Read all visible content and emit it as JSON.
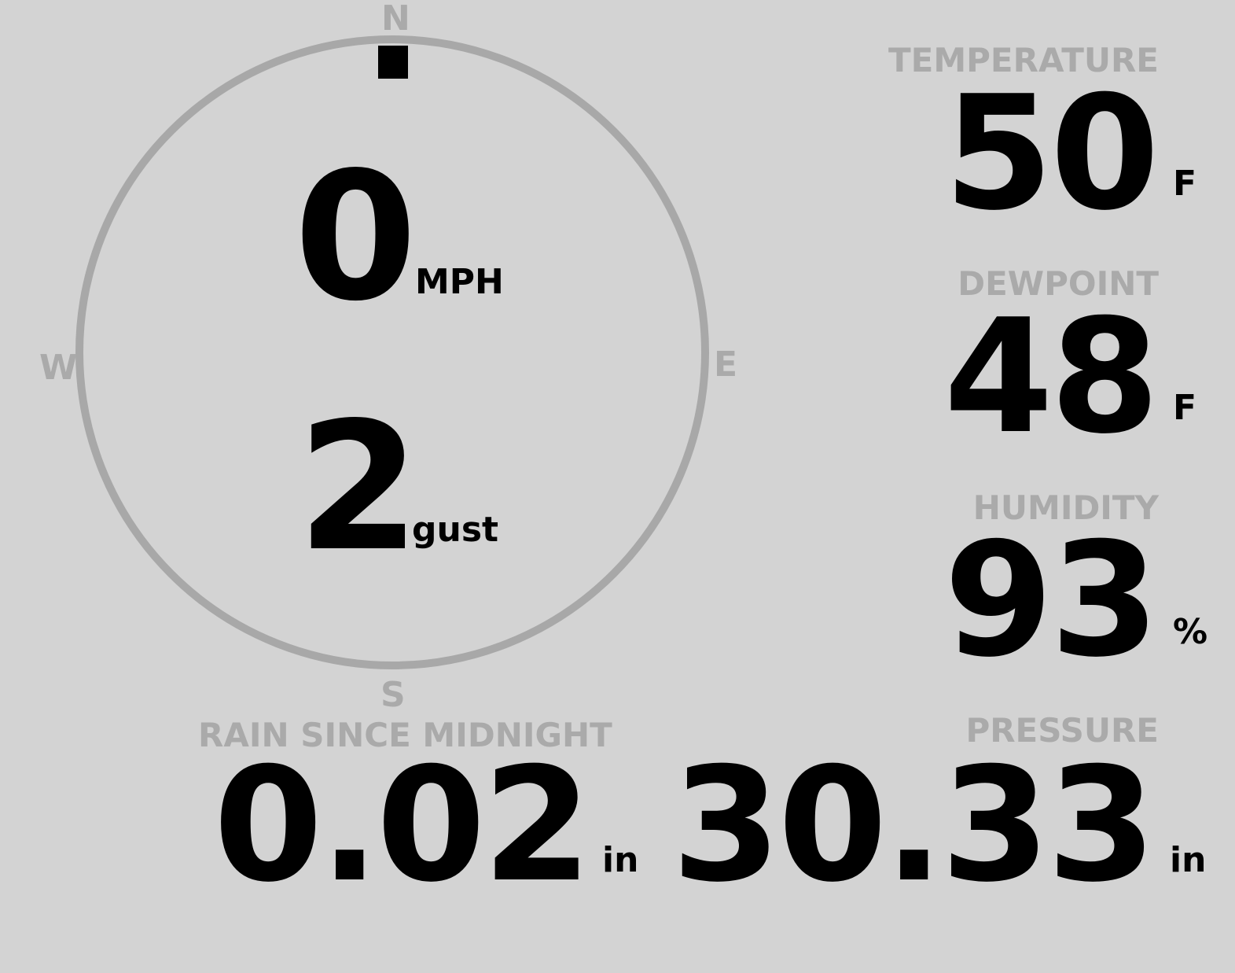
{
  "compass": {
    "north": "N",
    "south": "S",
    "east": "E",
    "west": "W",
    "wind_direction_deg": 0,
    "ring_color": "#a8a8a8",
    "marker_color": "#000000"
  },
  "wind": {
    "speed": "0",
    "speed_unit": "MPH",
    "gust": "2",
    "gust_unit": "gust"
  },
  "temperature": {
    "label": "TEMPERATURE",
    "value": "50",
    "unit": "F"
  },
  "dewpoint": {
    "label": "DEWPOINT",
    "value": "48",
    "unit": "F"
  },
  "humidity": {
    "label": "HUMIDITY",
    "value": "93",
    "unit": "%"
  },
  "rain": {
    "label": "RAIN SINCE MIDNIGHT",
    "value": "0.02",
    "unit": "in"
  },
  "pressure": {
    "label": "PRESSURE",
    "value": "30.33",
    "unit": "in"
  },
  "colors": {
    "background": "#d3d3d3",
    "label": "#aaaaaa",
    "value": "#000000"
  }
}
